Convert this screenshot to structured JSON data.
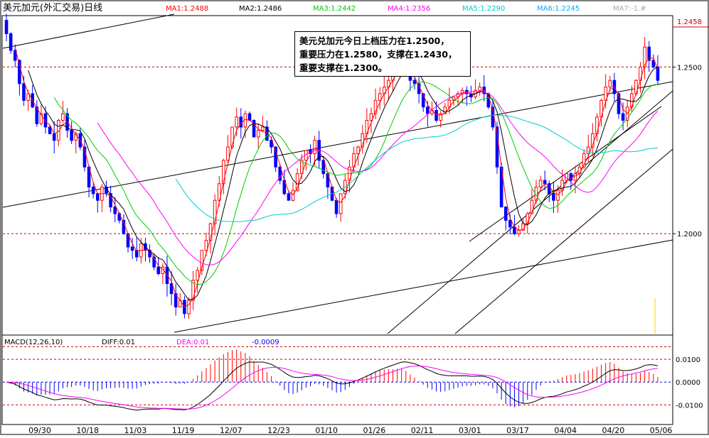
{
  "header": {
    "title": "美元加元(外汇交易)日线",
    "ma": [
      {
        "label": "MA1:1.2488",
        "color": "#ff0000"
      },
      {
        "label": "MA2:1.2486",
        "color": "#000000"
      },
      {
        "label": "MA3:1.2442",
        "color": "#00cc00"
      },
      {
        "label": "MA4:1.2356",
        "color": "#ff00ff"
      },
      {
        "label": "MA5:1.2290",
        "color": "#00cccc"
      },
      {
        "label": "MA6:1.2245",
        "color": "#00aaff"
      },
      {
        "label": "MA7:-1.#",
        "color": "#aaaaaa"
      }
    ]
  },
  "annotation": {
    "lines": [
      "美元兑加元今日上档压力在1.2500，",
      "重要压力在1.2580，支撑在1.2430，",
      "重要支撑在1.2300。"
    ]
  },
  "macd": {
    "label": "MACD(12,26,10)",
    "diff_label": "DIFF:0.01",
    "dea_label": "DEA:0.01",
    "macd_value": "-0.0009"
  },
  "chart_data": [
    {
      "type": "candlestick",
      "title": "美元加元(外汇交易)日线",
      "x": [
        "09/30",
        "10/18",
        "11/03",
        "11/19",
        "12/07",
        "12/23",
        "01/10",
        "01/26",
        "02/11",
        "03/01",
        "03/17",
        "04/04",
        "04/20",
        "05/06"
      ],
      "ylim": [
        1.17,
        1.265
      ],
      "yticks": [
        1.2,
        1.25
      ],
      "ytick_labels": [
        "1.2000",
        "1.2500"
      ],
      "last_price_label": "1.2458",
      "grid": false,
      "reference_lines_dashed": [
        1.2,
        1.25
      ],
      "close_series_approx": [
        1.26,
        1.255,
        1.252,
        1.245,
        1.24,
        1.242,
        1.238,
        1.233,
        1.236,
        1.232,
        1.23,
        1.228,
        1.234,
        1.236,
        1.231,
        1.228,
        1.23,
        1.226,
        1.22,
        1.214,
        1.212,
        1.21,
        1.214,
        1.212,
        1.208,
        1.206,
        1.204,
        1.2,
        1.196,
        1.195,
        1.193,
        1.197,
        1.195,
        1.193,
        1.19,
        1.188,
        1.19,
        1.185,
        1.182,
        1.178,
        1.18,
        1.176,
        1.18,
        1.186,
        1.189,
        1.195,
        1.198,
        1.203,
        1.21,
        1.215,
        1.222,
        1.226,
        1.232,
        1.235,
        1.232,
        1.236,
        1.234,
        1.229,
        1.231,
        1.232,
        1.228,
        1.226,
        1.22,
        1.216,
        1.212,
        1.21,
        1.213,
        1.218,
        1.222,
        1.225,
        1.224,
        1.228,
        1.222,
        1.218,
        1.214,
        1.21,
        1.206,
        1.212,
        1.216,
        1.22,
        1.224,
        1.226,
        1.23,
        1.234,
        1.236,
        1.24,
        1.242,
        1.244,
        1.246,
        1.248,
        1.252,
        1.254,
        1.25,
        1.246,
        1.245,
        1.242,
        1.238,
        1.236,
        1.237,
        1.234,
        1.236,
        1.238,
        1.24,
        1.241,
        1.242,
        1.243,
        1.242,
        1.241,
        1.243,
        1.244,
        1.242,
        1.238,
        1.232,
        1.22,
        1.208,
        1.204,
        1.202,
        1.2,
        1.201,
        1.203,
        1.206,
        1.21,
        1.214,
        1.216,
        1.215,
        1.212,
        1.21,
        1.213,
        1.216,
        1.218,
        1.216,
        1.218,
        1.22,
        1.224,
        1.226,
        1.23,
        1.235,
        1.24,
        1.244,
        1.246,
        1.242,
        1.236,
        1.234,
        1.238,
        1.242,
        1.246,
        1.25,
        1.256,
        1.252,
        1.25,
        1.246
      ]
    },
    {
      "type": "macd",
      "title": "MACD(12,26,10)",
      "ylim": [
        -0.018,
        0.02
      ],
      "yticks": [
        -0.01,
        0,
        0.01
      ],
      "ytick_labels": [
        "-0.0100",
        "0.0000",
        "0.0100"
      ],
      "reference_lines_dashed": [
        -0.01,
        0.01,
        0.0155
      ]
    }
  ]
}
